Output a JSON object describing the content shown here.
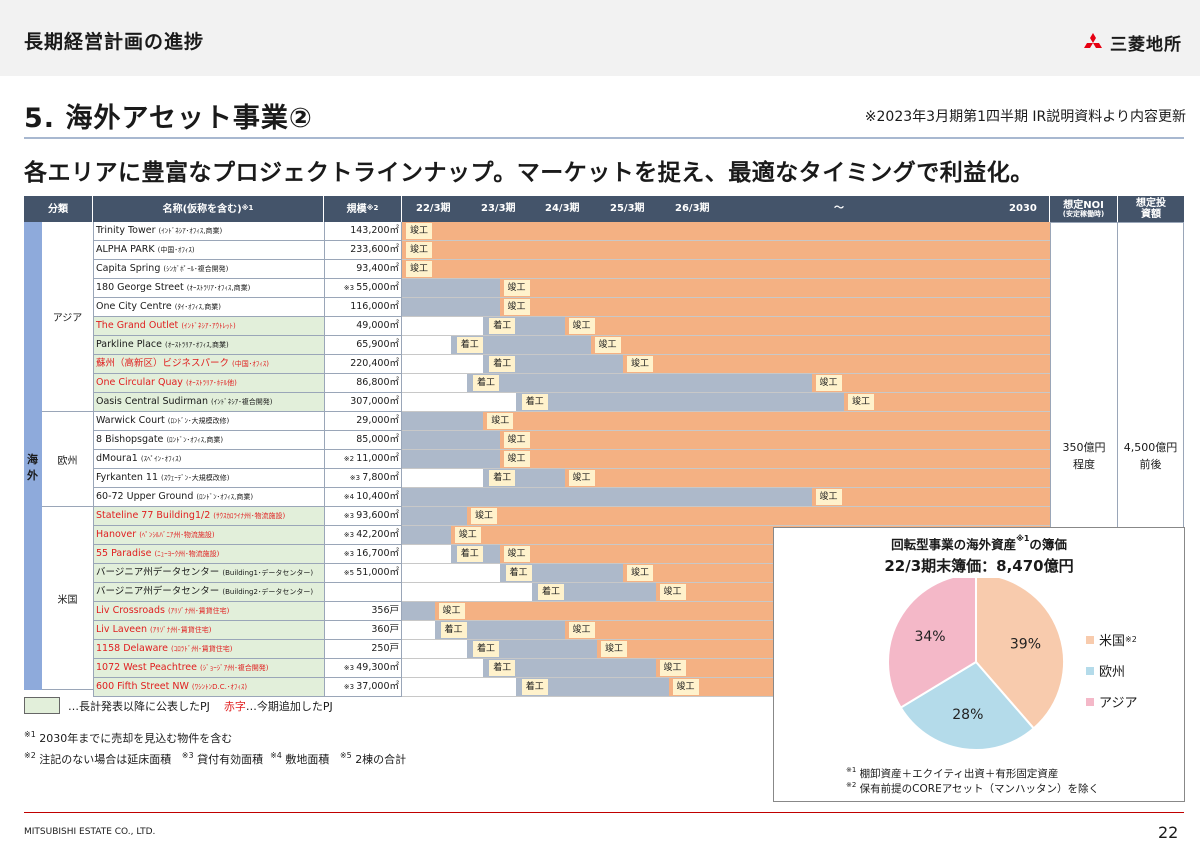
{
  "header": {
    "title": "長期経営計画の進捗",
    "logo_text": "三菱地所"
  },
  "section": {
    "title": "5. 海外アセット事業②",
    "source_note": "※2023年3月期第1四半期 IR説明資料より内容更新"
  },
  "headline": "各エリアに豊富なプロジェクトラインナップ。マーケットを捉え、最適なタイミングで利益化。",
  "table": {
    "headers": {
      "category": "分類",
      "name": "名称(仮称を含む)",
      "name_note": "※1",
      "scale": "規模",
      "scale_note": "※2",
      "years": [
        "22/3期",
        "23/3期",
        "24/3期",
        "25/3期",
        "26/3期",
        "～",
        "2030"
      ],
      "noi": "想定NOI",
      "noi_sub": "(安定稼働時)",
      "invest": "想定投資額"
    },
    "group_label": "海外",
    "regions": [
      "アジア",
      "欧州",
      "米国"
    ],
    "noi_value": [
      "350億円",
      "程度"
    ],
    "invest_value": [
      "4,500億円",
      "前後"
    ],
    "rows": [
      {
        "name": "Trinity Tower",
        "detail": "(ｲﾝﾄﾞﾈｼｱ･ｵﾌｨｽ,商業)",
        "note": "",
        "scale": "143,200㎡",
        "pj": false,
        "red": false,
        "start": "",
        "start_pos": null,
        "complete": "竣工",
        "complete_pos": 0
      },
      {
        "name": "ALPHA PARK",
        "detail": "(中国･ｵﾌｨｽ)",
        "note": "",
        "scale": "233,600㎡",
        "pj": false,
        "red": false,
        "start": "",
        "start_pos": null,
        "complete": "竣工",
        "complete_pos": 0
      },
      {
        "name": "Capita Spring",
        "detail": "(ｼﾝｶﾞﾎﾟｰﾙ･複合開発)",
        "note": "",
        "scale": "93,400㎡",
        "pj": false,
        "red": false,
        "start": "",
        "start_pos": null,
        "complete": "竣工",
        "complete_pos": 0
      },
      {
        "name": "180 George Street",
        "detail": "(ｵｰｽﾄﾗﾘｱ･ｵﾌｨｽ,商業)",
        "note": "※3",
        "scale": "55,000㎡",
        "pj": false,
        "red": false,
        "start": "",
        "start_pos": 0,
        "complete": "竣工",
        "complete_pos": 1.5
      },
      {
        "name": "One City Centre",
        "detail": "(ﾀｲ･ｵﾌｨｽ,商業)",
        "note": "",
        "scale": "116,000㎡",
        "pj": false,
        "red": false,
        "start": "",
        "start_pos": 0,
        "complete": "竣工",
        "complete_pos": 1.5
      },
      {
        "name": "The Grand Outlet",
        "detail": "(ｲﾝﾄﾞﾈｼｱ･ｱｳﾄﾚｯﾄ)",
        "note": "",
        "scale": "49,000㎡",
        "pj": true,
        "red": true,
        "start": "着工",
        "start_pos": 1.25,
        "complete": "竣工",
        "complete_pos": 2.5
      },
      {
        "name": "Parkline Place",
        "detail": "(ｵｰｽﾄﾗﾘｱ･ｵﾌｨｽ,商業)",
        "note": "",
        "scale": "65,900㎡",
        "pj": true,
        "red": false,
        "start": "着工",
        "start_pos": 0.75,
        "complete": "竣工",
        "complete_pos": 2.9
      },
      {
        "name": "蘇州（高新区）ビジネスパーク",
        "detail": "(中国･ｵﾌｨｽ)",
        "note": "",
        "scale": "220,400㎡",
        "pj": true,
        "red": true,
        "start": "着工",
        "start_pos": 1.25,
        "complete": "竣工",
        "complete_pos": 3.4
      },
      {
        "name": "One Circular Quay",
        "detail": "(ｵｰｽﾄﾗﾘｱ･ﾎﾃﾙ他)",
        "note": "",
        "scale": "86,800㎡",
        "pj": true,
        "red": true,
        "start": "着工",
        "start_pos": 1.0,
        "complete": "竣工",
        "complete_pos": 6.3
      },
      {
        "name": "Oasis Central Sudirman",
        "detail": "(ｲﾝﾄﾞﾈｼｱ･複合開発)",
        "note": "",
        "scale": "307,000㎡",
        "pj": true,
        "red": false,
        "start": "着工",
        "start_pos": 1.75,
        "complete": "竣工",
        "complete_pos": 6.8
      },
      {
        "name": "Warwick Court",
        "detail": "(ﾛﾝﾄﾞﾝ･大規模改修)",
        "note": "",
        "scale": "29,000㎡",
        "pj": false,
        "red": false,
        "start": "",
        "start_pos": 0,
        "complete": "竣工",
        "complete_pos": 1.25
      },
      {
        "name": "8 Bishopsgate",
        "detail": "(ﾛﾝﾄﾞﾝ･ｵﾌｨｽ,商業)",
        "note": "",
        "scale": "85,000㎡",
        "pj": false,
        "red": false,
        "start": "",
        "start_pos": 0,
        "complete": "竣工",
        "complete_pos": 1.5
      },
      {
        "name": "dMoura1",
        "detail": "(ｽﾍﾟｲﾝ･ｵﾌｨｽ)",
        "note": "※2",
        "scale": "11,000㎡",
        "pj": false,
        "red": false,
        "start": "",
        "start_pos": 0,
        "complete": "竣工",
        "complete_pos": 1.5
      },
      {
        "name": "Fyrkanten 11",
        "detail": "(ｽｳｪｰﾃﾞﾝ･大規模改修)",
        "note": "※3",
        "scale": "7,800㎡",
        "pj": false,
        "red": false,
        "start": "着工",
        "start_pos": 1.25,
        "complete": "竣工",
        "complete_pos": 2.5
      },
      {
        "name": "60-72 Upper Ground",
        "detail": "(ﾛﾝﾄﾞﾝ･ｵﾌｨｽ,商業)",
        "note": "※4",
        "scale": "10,400㎡",
        "pj": false,
        "red": false,
        "start": "",
        "start_pos": 0,
        "complete": "竣工",
        "complete_pos": 6.3
      },
      {
        "name": "Stateline 77 Building1/2",
        "detail": "(ｻｳｽｶﾛﾗｲﾅ州･物流施設)",
        "note": "※3",
        "scale": "93,600㎡",
        "pj": true,
        "red": true,
        "start": "",
        "start_pos": 0,
        "complete": "竣工",
        "complete_pos": 1.0
      },
      {
        "name": "Hanover",
        "detail": "(ﾍﾟﾝｼﾙﾊﾞﾆｱ州･物流施設)",
        "note": "※3",
        "scale": "42,200㎡",
        "pj": true,
        "red": true,
        "start": "",
        "start_pos": 0,
        "complete": "竣工",
        "complete_pos": 0.75
      },
      {
        "name": "55 Paradise",
        "detail": "(ﾆｭｰﾖｰｸ州･物流施設)",
        "note": "※3",
        "scale": "16,700㎡",
        "pj": true,
        "red": true,
        "start": "着工",
        "start_pos": 0.75,
        "complete": "竣工",
        "complete_pos": 1.5
      },
      {
        "name": "バージニア州データセンター",
        "detail": "(Building1･データセンター)",
        "note": "※5",
        "scale": "51,000㎡",
        "pj": true,
        "red": false,
        "start": "着工",
        "start_pos": 1.5,
        "complete": "竣工",
        "complete_pos": 3.4
      },
      {
        "name": "バージニア州データセンター",
        "detail": "(Building2･データセンター)",
        "note": "",
        "scale": "",
        "pj": true,
        "red": false,
        "start": "着工",
        "start_pos": 2.0,
        "complete": "竣工",
        "complete_pos": 3.9
      },
      {
        "name": "Liv Crossroads",
        "detail": "(ｱﾘｿﾞﾅ州･賃貸住宅)",
        "note": "",
        "scale": "356戸",
        "pj": true,
        "red": true,
        "start": "",
        "start_pos": 0,
        "complete": "竣工",
        "complete_pos": 0.5
      },
      {
        "name": "Liv Laveen",
        "detail": "(ｱﾘｿﾞﾅ州･賃貸住宅)",
        "note": "",
        "scale": "360戸",
        "pj": true,
        "red": true,
        "start": "着工",
        "start_pos": 0.5,
        "complete": "竣工",
        "complete_pos": 2.5
      },
      {
        "name": "1158 Delaware",
        "detail": "(ｺﾛﾗﾄﾞ州･賃貸住宅)",
        "note": "",
        "scale": "250戸",
        "pj": true,
        "red": true,
        "start": "着工",
        "start_pos": 1.0,
        "complete": "竣工",
        "complete_pos": 3.0
      },
      {
        "name": "1072 West Peachtree",
        "detail": "(ｼﾞｮｰｼﾞｱ州･複合開発)",
        "note": "※3",
        "scale": "49,300㎡",
        "pj": true,
        "red": true,
        "start": "着工",
        "start_pos": 1.25,
        "complete": "竣工",
        "complete_pos": 3.9
      },
      {
        "name": "600 Fifth Street NW",
        "detail": "(ﾜｼﾝﾄﾝD.C.･ｵﾌｨｽ)",
        "note": "※3",
        "scale": "37,000㎡",
        "pj": true,
        "red": true,
        "start": "着工",
        "start_pos": 1.75,
        "complete": "竣工",
        "complete_pos": 4.1
      }
    ]
  },
  "legend": {
    "pj": "…長計発表以降に公表したPJ",
    "red_label": "赤字",
    "red_desc": "…今期追加したPJ"
  },
  "footnotes": {
    "n1_mark": "※1",
    "n1": "2030年までに売却を見込む物件を含む",
    "n2_mark": "※2",
    "n2": "注記のない場合は延床面積",
    "n3_mark": "※3",
    "n3": "貸付有効面積",
    "n4_mark": "※4",
    "n4": "敷地面積",
    "n5_mark": "※5",
    "n5": "2棟の合計"
  },
  "pie": {
    "title": "回転型事業の海外資産",
    "title_mark": "※1",
    "title_suffix": "の簿価",
    "subtitle": "22/3期末簿価：8,470億円",
    "note1_mark": "※1",
    "note1": "棚卸資産＋エクイティ出資＋有形固定資産",
    "note2_mark": "※2",
    "note2": "保有前提のCOREアセット（マンハッタン）を除く"
  },
  "chart_data": {
    "type": "pie",
    "title": "回転型事業の海外資産※1の簿価",
    "subtitle": "22/3期末簿価：8,470億円",
    "series": [
      {
        "name": "米国",
        "value": 39,
        "label": "39%",
        "color": "#f8cbad",
        "note": "※2"
      },
      {
        "name": "欧州",
        "value": 28,
        "label": "28%",
        "color": "#b4dbea",
        "note": ""
      },
      {
        "name": "アジア",
        "value": 34,
        "label": "34%",
        "color": "#f4b8c8",
        "note": ""
      }
    ]
  },
  "colors": {
    "header_bg": "#44546a",
    "group_blue": "#8eaadb",
    "gray_bar": "#adb9ca",
    "orange_bar": "#f4b183",
    "pj_green": "#e2efda",
    "marker": "#fff2cc",
    "red": "#e02020"
  },
  "footer": {
    "company": "MITSUBISHI ESTATE CO., LTD.",
    "page": "22"
  }
}
